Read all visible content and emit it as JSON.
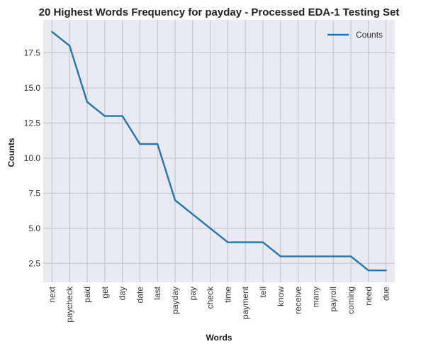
{
  "chart_data": {
    "type": "line",
    "title": "20 Highest Words Frequency for payday - Processed EDA-1 Testing Set",
    "xlabel": "Words",
    "ylabel": "Counts",
    "categories": [
      "next",
      "paycheck",
      "paid",
      "get",
      "day",
      "date",
      "last",
      "payday",
      "pay",
      "check",
      "time",
      "payment",
      "tell",
      "know",
      "receive",
      "many",
      "payroll",
      "coming",
      "need",
      "due"
    ],
    "series": [
      {
        "name": "Counts",
        "values": [
          19,
          18,
          14,
          13,
          13,
          11,
          11,
          7,
          6,
          5,
          4,
          4,
          4,
          3,
          3,
          3,
          3,
          3,
          2,
          2
        ]
      }
    ],
    "yticks": [
      2.5,
      5.0,
      7.5,
      10.0,
      12.5,
      15.0,
      17.5
    ],
    "ylim": [
      1.15,
      19.85
    ],
    "grid": true,
    "legend_position": "top-right",
    "colors": {
      "line": "#1f77b4",
      "plot_bg": "#eaeaf2",
      "grid": "#c0c0c8"
    }
  }
}
